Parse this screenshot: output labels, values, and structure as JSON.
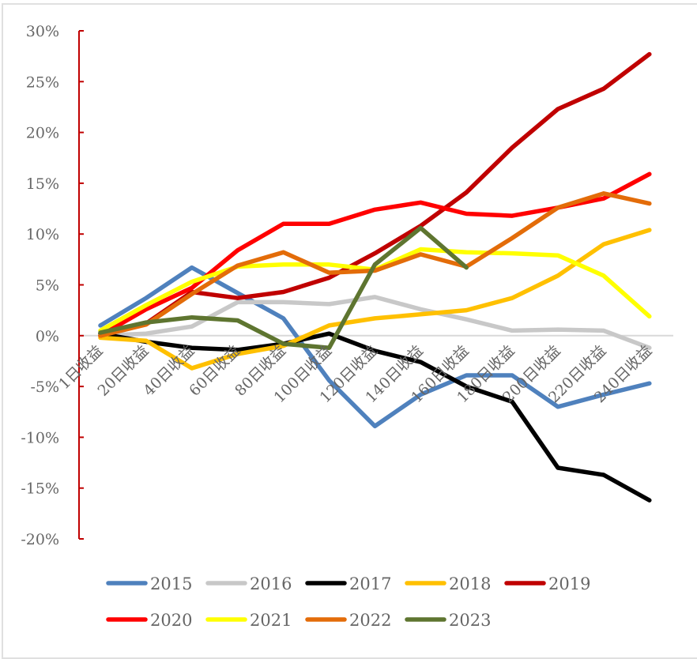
{
  "chart_data": {
    "type": "line",
    "title": "",
    "xlabel": "",
    "ylabel": "",
    "categories": [
      "1日收益",
      "20日收益",
      "40日收益",
      "60日收益",
      "80日收益",
      "100日收益",
      "120日收益",
      "140日收益",
      "160日收益",
      "180日收益",
      "200日收益",
      "220日收益",
      "240日收益"
    ],
    "ylim": [
      -20,
      30
    ],
    "yticks": [
      -20,
      -15,
      -10,
      -5,
      0,
      5,
      10,
      15,
      20,
      25,
      30
    ],
    "ytick_labels": [
      "-20%",
      "-15%",
      "-10%",
      "-5%",
      "0%",
      "5%",
      "10%",
      "15%",
      "20%",
      "25%",
      "30%"
    ],
    "y_unit": "%",
    "grid": false,
    "legend_position": "bottom",
    "axis_color": "#C00000",
    "zero_line_color": "#D9D9D9",
    "series": [
      {
        "name": "2015",
        "color": "#4F81BD",
        "values": [
          1.0,
          3.7,
          6.7,
          4.2,
          1.7,
          -4.4,
          -8.9,
          -5.8,
          -3.9,
          -3.9,
          -7.0,
          -5.8,
          -4.7
        ]
      },
      {
        "name": "2016",
        "color": "#C8C8C8",
        "values": [
          0.0,
          0.2,
          0.9,
          3.3,
          3.3,
          3.1,
          3.8,
          2.6,
          1.6,
          0.5,
          0.6,
          0.5,
          -1.2
        ]
      },
      {
        "name": "2017",
        "color": "#000000",
        "values": [
          0.2,
          -0.6,
          -1.2,
          -1.4,
          -0.8,
          0.2,
          -1.5,
          -2.6,
          -5.0,
          -6.5,
          -13.0,
          -13.7,
          -16.2
        ]
      },
      {
        "name": "2018",
        "color": "#FFC000",
        "values": [
          -0.2,
          -0.5,
          -3.2,
          -1.8,
          -1.0,
          1.0,
          1.7,
          2.1,
          2.5,
          3.7,
          5.9,
          9.0,
          10.4
        ]
      },
      {
        "name": "2019",
        "color": "#C00000",
        "values": [
          0.0,
          1.2,
          4.3,
          3.7,
          4.3,
          5.7,
          8.1,
          10.8,
          14.1,
          18.5,
          22.3,
          24.3,
          27.7
        ]
      },
      {
        "name": "2020",
        "color": "#FF0000",
        "values": [
          0.0,
          2.6,
          4.7,
          8.4,
          11.0,
          11.0,
          12.4,
          13.1,
          12.0,
          11.8,
          12.6,
          13.5,
          15.9
        ]
      },
      {
        "name": "2021",
        "color": "#FFFF00",
        "values": [
          0.5,
          3.0,
          5.3,
          6.8,
          7.0,
          7.0,
          6.5,
          8.5,
          8.2,
          8.1,
          7.9,
          5.9,
          1.9
        ]
      },
      {
        "name": "2022",
        "color": "#E36C09",
        "values": [
          0.0,
          1.1,
          4.1,
          6.9,
          8.2,
          6.2,
          6.4,
          8.0,
          6.8,
          9.6,
          12.6,
          14.0,
          13.0
        ]
      },
      {
        "name": "2023",
        "color": "#5E7530",
        "values": [
          0.3,
          1.3,
          1.8,
          1.5,
          -0.8,
          -1.2,
          7.0,
          10.6,
          6.7,
          null,
          null,
          null,
          null
        ]
      }
    ]
  }
}
